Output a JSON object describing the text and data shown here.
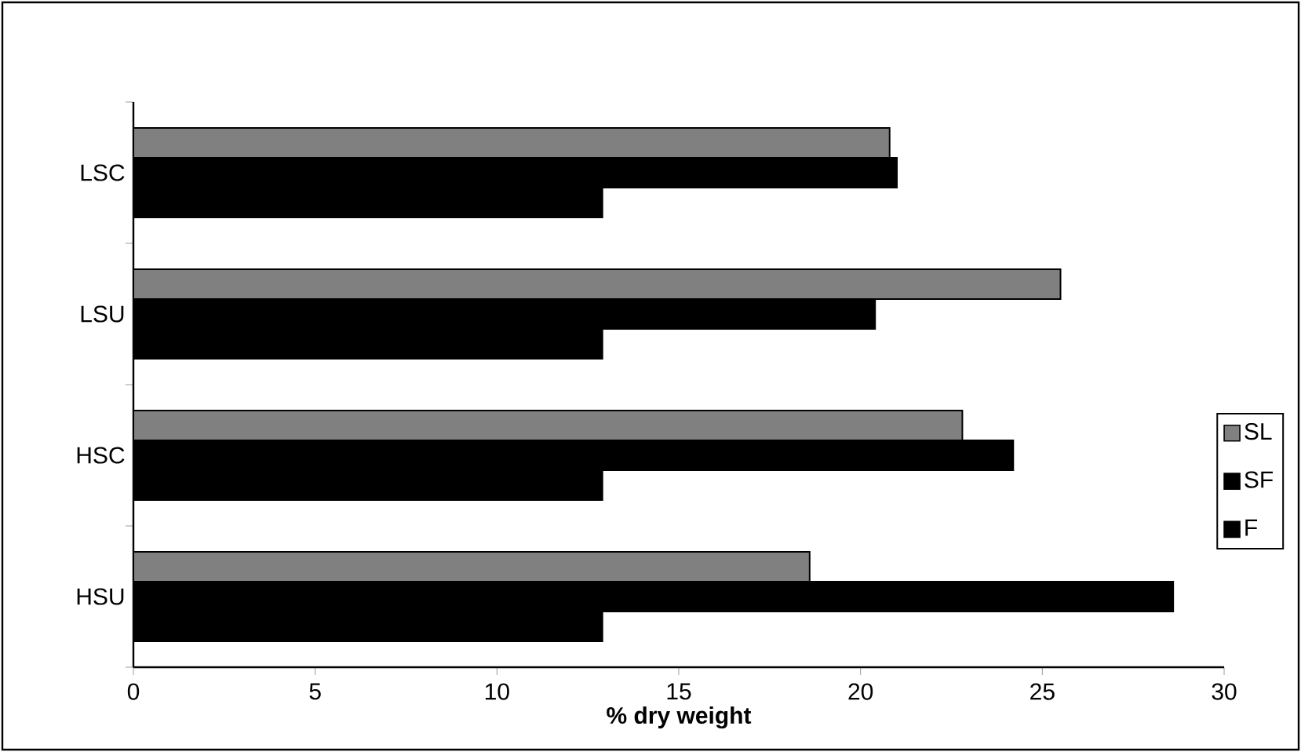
{
  "chart_data": {
    "type": "bar",
    "orientation": "horizontal",
    "xlabel": "% dry weight",
    "categories": [
      "LSC",
      "LSU",
      "HSC",
      "HSU"
    ],
    "series": [
      {
        "name": "SL",
        "color": "#808080",
        "values": [
          20.8,
          25.5,
          22.8,
          18.6
        ]
      },
      {
        "name": "SF",
        "color": "#000000",
        "values": [
          21.0,
          20.4,
          24.2,
          28.6
        ]
      },
      {
        "name": "F",
        "color": "#000000",
        "values": [
          12.9,
          12.9,
          12.9,
          12.9
        ]
      }
    ],
    "xlim": [
      0,
      30
    ],
    "xticks": [
      0,
      5,
      10,
      15,
      20,
      25,
      30
    ],
    "legend": "right",
    "grid": false
  }
}
